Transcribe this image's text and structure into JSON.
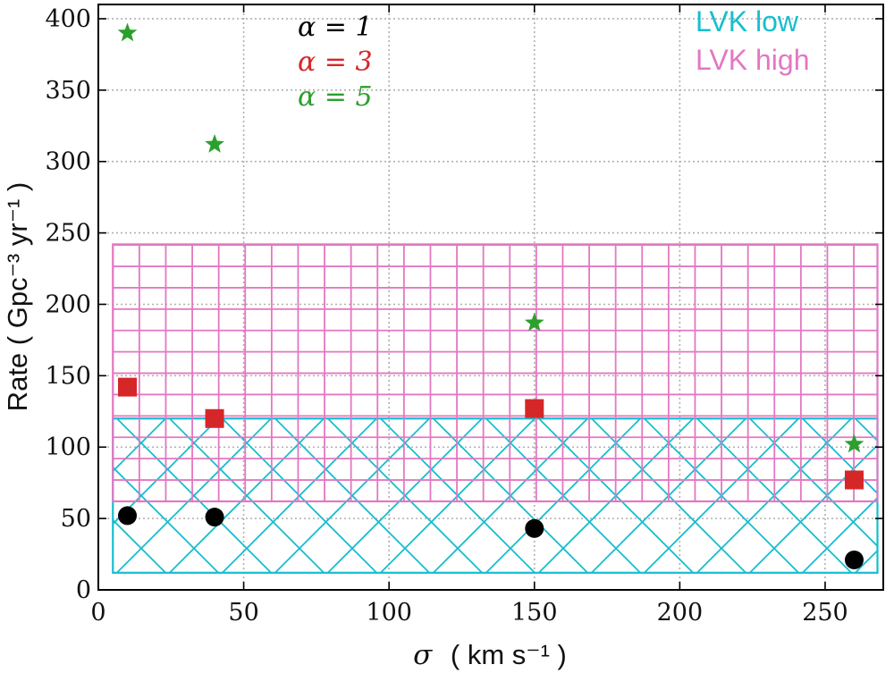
{
  "chart_data": {
    "type": "scatter",
    "xlabel_symbol": "σ",
    "xlabel": "( km s⁻¹ )",
    "ylabel": "Rate ( Gpc⁻³ yr⁻¹ )",
    "xlim": [
      0,
      270
    ],
    "ylim": [
      0,
      410
    ],
    "x_ticks": [
      0,
      50,
      100,
      150,
      200,
      250
    ],
    "y_ticks": [
      0,
      50,
      100,
      150,
      200,
      250,
      300,
      350,
      400
    ],
    "grid": true,
    "series": [
      {
        "name": "α = 1",
        "marker": "circle",
        "color": "#000000",
        "points": [
          {
            "x": 10,
            "y": 52
          },
          {
            "x": 40,
            "y": 51
          },
          {
            "x": 150,
            "y": 43
          },
          {
            "x": 260,
            "y": 21
          }
        ]
      },
      {
        "name": "α = 3",
        "marker": "square",
        "color": "#d62728",
        "points": [
          {
            "x": 10,
            "y": 142
          },
          {
            "x": 40,
            "y": 120
          },
          {
            "x": 150,
            "y": 127
          },
          {
            "x": 260,
            "y": 77
          }
        ]
      },
      {
        "name": "α = 5",
        "marker": "star",
        "color": "#2ca02c",
        "points": [
          {
            "x": 10,
            "y": 390
          },
          {
            "x": 40,
            "y": 312
          },
          {
            "x": 150,
            "y": 187
          },
          {
            "x": 260,
            "y": 102
          }
        ]
      }
    ],
    "bands": [
      {
        "name": "LVK low",
        "color": "#17becf",
        "hatch": "x",
        "x_range": [
          5,
          268
        ],
        "y_range": [
          12,
          120
        ]
      },
      {
        "name": "LVK high",
        "color": "#e377c2",
        "hatch": "+",
        "x_range": [
          5,
          268
        ],
        "y_range": [
          62,
          242
        ]
      }
    ],
    "legend": {
      "series_labels": [
        "α = 1",
        "α = 3",
        "α = 5"
      ],
      "band_labels": [
        "LVK low",
        "LVK high"
      ],
      "series_placement": "top-center",
      "band_placement": "top-right"
    }
  }
}
